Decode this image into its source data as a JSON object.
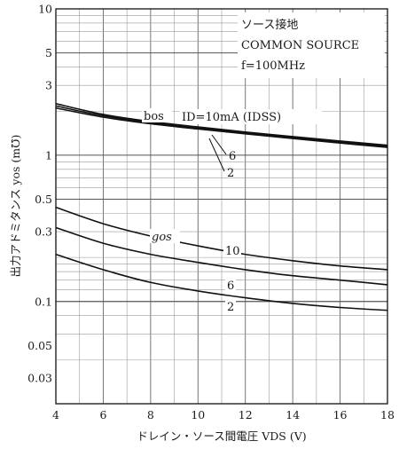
{
  "chart_data": {
    "type": "line",
    "y_scale": "log",
    "grid": true,
    "xlim": [
      4,
      18
    ],
    "ylim": [
      0.02,
      10
    ],
    "x_ticks": [
      4,
      6,
      8,
      10,
      12,
      14,
      16,
      18
    ],
    "x_tick_labels": [
      "4",
      "6",
      "8",
      "10",
      "12",
      "14",
      "16",
      "18"
    ],
    "y_ticks": [
      10,
      5,
      3,
      1,
      0.5,
      0.3,
      0.1,
      0.05,
      0.03
    ],
    "y_tick_labels": [
      "10",
      "5",
      "3",
      "1",
      "0.5",
      "0.3",
      "0.1",
      "0.05",
      "0.03"
    ],
    "xlabel": "ドレイン・ソース間電圧 VDS (V)",
    "ylabel": "出力アドミタンス yos (m℧)",
    "legend_lines": [
      "ソース接地",
      "COMMON SOURCE",
      "f=100MHz"
    ],
    "annotations": {
      "b_label": "bos",
      "g_label": "gos",
      "id_label": "ID=10mA (IDSS)",
      "b_6": "6",
      "b_2": "2",
      "g_10": "10",
      "g_6": "6",
      "g_2": "2"
    },
    "x": [
      4,
      6,
      8,
      10,
      12,
      14,
      16,
      18
    ],
    "series": [
      {
        "group": "bos",
        "label": "IDSS",
        "values": [
          2.25,
          1.9,
          1.7,
          1.56,
          1.44,
          1.34,
          1.25,
          1.17
        ]
      },
      {
        "group": "bos",
        "label": "6",
        "values": [
          2.17,
          1.86,
          1.67,
          1.53,
          1.42,
          1.32,
          1.23,
          1.15
        ]
      },
      {
        "group": "bos",
        "label": "2",
        "values": [
          2.1,
          1.82,
          1.64,
          1.51,
          1.4,
          1.3,
          1.21,
          1.13
        ]
      },
      {
        "group": "gos",
        "label": "10",
        "values": [
          0.44,
          0.34,
          0.28,
          0.24,
          0.21,
          0.19,
          0.175,
          0.165
        ]
      },
      {
        "group": "gos",
        "label": "6",
        "values": [
          0.32,
          0.25,
          0.21,
          0.185,
          0.165,
          0.15,
          0.14,
          0.13
        ]
      },
      {
        "group": "gos",
        "label": "2",
        "values": [
          0.21,
          0.165,
          0.135,
          0.118,
          0.106,
          0.097,
          0.091,
          0.087
        ]
      }
    ]
  }
}
